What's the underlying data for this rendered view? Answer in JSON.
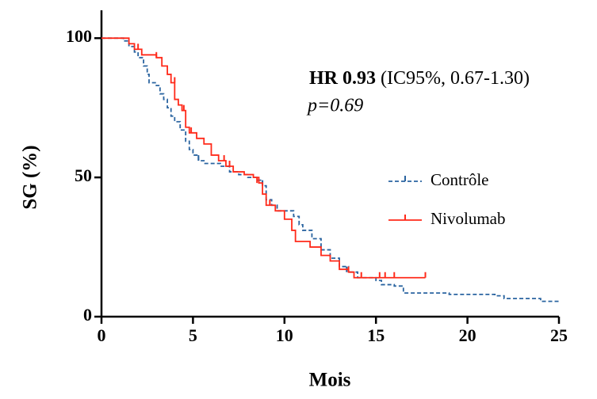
{
  "chart_data": {
    "type": "km-step",
    "x_label": "Mois",
    "y_label": "SG (%)",
    "annotations": [
      "HR 0.93",
      "(IC95%, 0.67-1.30)",
      "p=0.69"
    ],
    "xlim": [
      0,
      25
    ],
    "ylim": [
      0,
      110
    ],
    "xticks": [
      0,
      5,
      10,
      15,
      20,
      25
    ],
    "yticks": [
      0,
      50,
      100
    ],
    "series": [
      {
        "name": "Contrôle",
        "color": "#2a64a0",
        "dashed": true,
        "x": [
          0,
          1.2,
          1.5,
          1.8,
          2.0,
          2.3,
          2.5,
          2.6,
          3.0,
          3.2,
          3.4,
          3.6,
          3.8,
          4.0,
          4.3,
          4.6,
          4.8,
          5.0,
          5.3,
          5.6,
          6.5,
          7.0,
          7.5,
          8.0,
          8.5,
          8.8,
          9.0,
          9.3,
          9.6,
          10.5,
          10.8,
          11.0,
          11.5,
          12.0,
          12.5,
          13.0,
          13.5,
          14.0,
          15.0,
          15.3,
          16.0,
          16.5,
          19.0,
          21.5,
          22.0,
          24.0,
          25.0
        ],
        "values": [
          100,
          99,
          97,
          95,
          93,
          90,
          87,
          84,
          83,
          80,
          78,
          75,
          72,
          70,
          67,
          63,
          60,
          58,
          56,
          55,
          54,
          52,
          51,
          50,
          49,
          47,
          42,
          40,
          38,
          36,
          33,
          31,
          28,
          24,
          21,
          18,
          16,
          14,
          13,
          11.5,
          11,
          8.5,
          8,
          7.5,
          6.5,
          5.5,
          5.5
        ],
        "censored": {
          "x": [
            5.3,
            8.8,
            13.4
          ],
          "values": [
            56,
            47,
            16
          ]
        }
      },
      {
        "name": "Nivolumab",
        "color": "#ff2a1a",
        "dashed": false,
        "x": [
          0,
          1.5,
          1.8,
          2.2,
          3.0,
          3.3,
          3.6,
          3.8,
          4.0,
          4.2,
          4.4,
          4.6,
          4.8,
          5.2,
          5.6,
          6.0,
          6.4,
          6.8,
          7.2,
          7.8,
          8.3,
          8.6,
          8.8,
          9.0,
          9.5,
          10.0,
          10.4,
          10.6,
          11.4,
          12.0,
          12.5,
          13.0,
          13.5,
          13.8,
          17.7
        ],
        "values": [
          100,
          98,
          96,
          94,
          93,
          90,
          87,
          84,
          78,
          76,
          74,
          68,
          66,
          64,
          62,
          58,
          56,
          54,
          52,
          51,
          50,
          48,
          44,
          40,
          38,
          35,
          31,
          27,
          25,
          22,
          20,
          17,
          16,
          14,
          14
        ],
        "censored": {
          "x": [
            2.0,
            3.0,
            4.0,
            4.5,
            4.9,
            6.7,
            7.0,
            8.5,
            9.2,
            13.5,
            14.2,
            15.2,
            15.5,
            16.0,
            17.7
          ],
          "values": [
            96,
            93,
            84,
            74,
            66,
            56,
            54,
            48,
            40,
            16,
            14,
            14,
            14,
            14,
            14
          ]
        }
      }
    ]
  }
}
